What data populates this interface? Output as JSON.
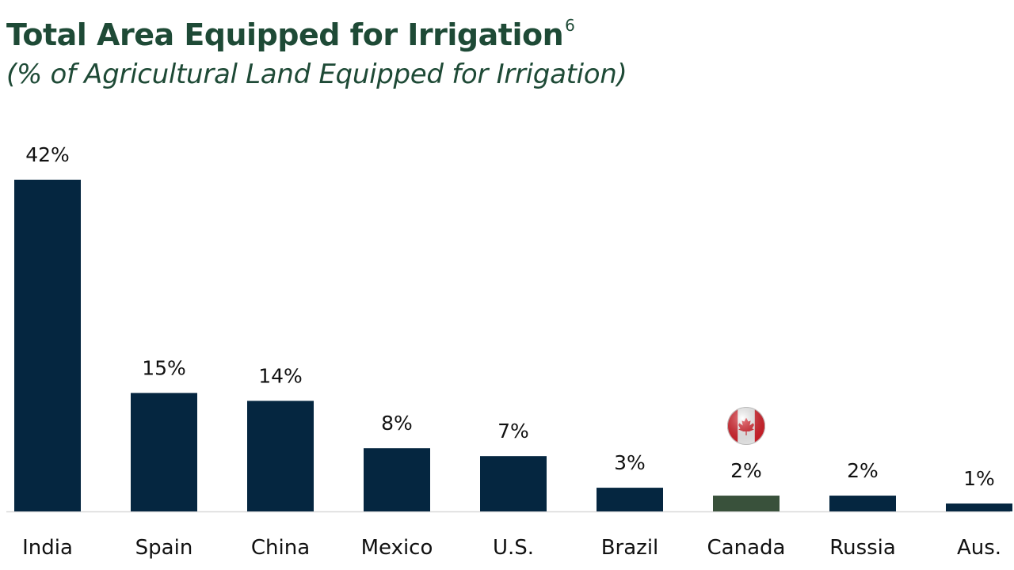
{
  "colors": {
    "title": "#1e4a36",
    "bar": "#052640",
    "highlight_bar": "#39513b",
    "baseline": "#d9d9d9",
    "flag_red": "#e0202a"
  },
  "chart_data": {
    "type": "bar",
    "title": "Total Area Equipped for Irrigation",
    "title_superscript": "6",
    "subtitle": "(% of Agricultural Land Equipped for Irrigation)",
    "categories": [
      "India",
      "Spain",
      "China",
      "Mexico",
      "U.S.",
      "Brazil",
      "Canada",
      "Russia",
      "Aus."
    ],
    "values": [
      42,
      15,
      14,
      8,
      7,
      3,
      2,
      2,
      1
    ],
    "value_labels": [
      "42%",
      "15%",
      "14%",
      "8%",
      "7%",
      "3%",
      "2%",
      "2%",
      "1%"
    ],
    "highlight_category": "Canada",
    "highlight_icon": "canada-flag-icon",
    "ylim": [
      0,
      42
    ],
    "grid": false,
    "legend": "none",
    "xlabel": "",
    "ylabel": ""
  }
}
